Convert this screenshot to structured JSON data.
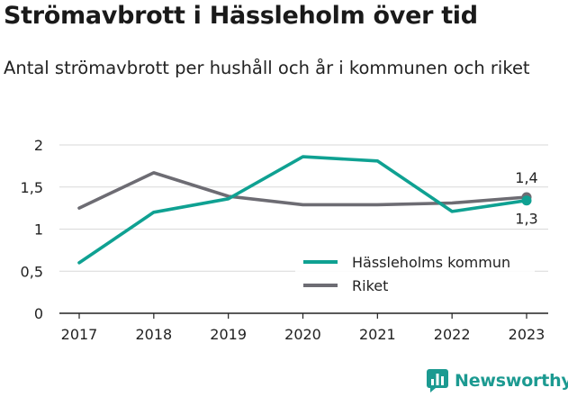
{
  "title": "Strömavbrott i Hässleholm över tid",
  "subtitle": "Antal strömavbrott per hushåll och år i kommunen och riket",
  "brand": {
    "name": "Newsworthy",
    "icon": "newsworthy-chart-icon"
  },
  "colors": {
    "kommun": "#0fa192",
    "riket": "#6d6c73",
    "grid": "#d9d9d9",
    "axis": "#222222",
    "brand": "#1c9a91"
  },
  "chart_data": {
    "type": "line",
    "x": [
      "2017",
      "2018",
      "2019",
      "2020",
      "2021",
      "2022",
      "2023"
    ],
    "ylim": [
      0,
      2
    ],
    "yticks": [
      "0",
      "0,5",
      "1",
      "1,5",
      "2"
    ],
    "grid": true,
    "legend_position": "bottom-right",
    "series": [
      {
        "name": "Hässleholms kommun",
        "color": "#0fa192",
        "values": [
          0.6,
          1.2,
          1.36,
          1.86,
          1.81,
          1.21,
          1.34
        ],
        "end_label": "1,3"
      },
      {
        "name": "Riket",
        "color": "#6d6c73",
        "values": [
          1.25,
          1.67,
          1.39,
          1.29,
          1.29,
          1.31,
          1.38
        ],
        "end_label": "1,4"
      }
    ]
  }
}
